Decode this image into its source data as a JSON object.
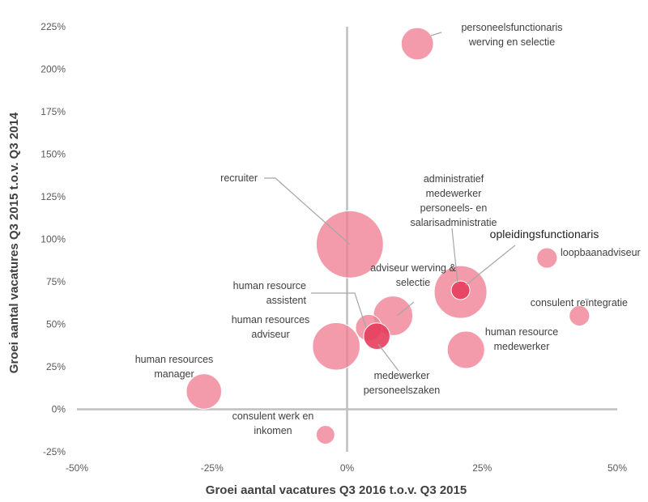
{
  "chart_data": {
    "type": "scatter",
    "xlabel": "Groei aantal vacatures Q3 2016 t.o.v. Q3 2015",
    "ylabel": "Groei aantal vacatures Q3 2015 t.o.v. Q3 2014",
    "xlim": [
      -50,
      50
    ],
    "ylim": [
      -25,
      225
    ],
    "x_ticks": [
      "-50%",
      "-25%",
      "0%",
      "25%",
      "50%"
    ],
    "y_ticks": [
      "-25%",
      "0%",
      "25%",
      "50%",
      "75%",
      "100%",
      "125%",
      "150%",
      "175%",
      "200%",
      "225%"
    ],
    "x_tick_values": [
      -50,
      -25,
      0,
      25,
      50
    ],
    "y_tick_values": [
      -25,
      0,
      25,
      50,
      75,
      100,
      125,
      150,
      175,
      200,
      225
    ],
    "colors": {
      "bubble": "#f07f93",
      "bubble_dark": "#e53d5c",
      "axis": "#bfbfbf"
    },
    "points": [
      {
        "id": "personeelsfunctionaris",
        "label": [
          "personeelsfunctionaris",
          "werving en selectie"
        ],
        "x": 13,
        "y": 215,
        "size": 3
      },
      {
        "id": "recruiter",
        "label": [
          "recruiter"
        ],
        "x": 0.5,
        "y": 97,
        "size": 13
      },
      {
        "id": "administratief",
        "label": [
          "administratief",
          "medewerker",
          "personeels- en",
          "salarisadministratie"
        ],
        "x": 21,
        "y": 70,
        "size": 1
      },
      {
        "id": "opleidingsfunctionaris",
        "label": [
          "opleidingsfunctionaris"
        ],
        "x": 21,
        "y": 69,
        "size": 8
      },
      {
        "id": "loopbaanadviseur",
        "label": [
          "loopbaanadviseur"
        ],
        "x": 37,
        "y": 89,
        "size": 1.2
      },
      {
        "id": "adviseur-werving",
        "label": [
          "adviseur werving &",
          "selectie"
        ],
        "x": 8.5,
        "y": 55,
        "size": 4.5
      },
      {
        "id": "human-resource-assistent",
        "label": [
          "human resource",
          "assistent"
        ],
        "x": 4,
        "y": 48,
        "size": 2
      },
      {
        "id": "medewerker-personeelszaken",
        "label": [
          "medewerker",
          "personeelszaken"
        ],
        "x": 5.5,
        "y": 43,
        "size": 2
      },
      {
        "id": "consulent-reintegratie",
        "label": [
          "consulent reïntegratie"
        ],
        "x": 43,
        "y": 55,
        "size": 1.2
      },
      {
        "id": "human-resources-adviseur",
        "label": [
          "human resources",
          "adviseur"
        ],
        "x": -2,
        "y": 37,
        "size": 6.5
      },
      {
        "id": "human-resource-medewerker",
        "label": [
          "human resource",
          "medewerker"
        ],
        "x": 22,
        "y": 35,
        "size": 4
      },
      {
        "id": "human-resources-manager",
        "label": [
          "human resources",
          "manager"
        ],
        "x": -26.5,
        "y": 10.5,
        "size": 3.6
      },
      {
        "id": "consulent-werk",
        "label": [
          "consulent werk en",
          "inkomen"
        ],
        "x": -4,
        "y": -15,
        "size": 1
      }
    ]
  }
}
